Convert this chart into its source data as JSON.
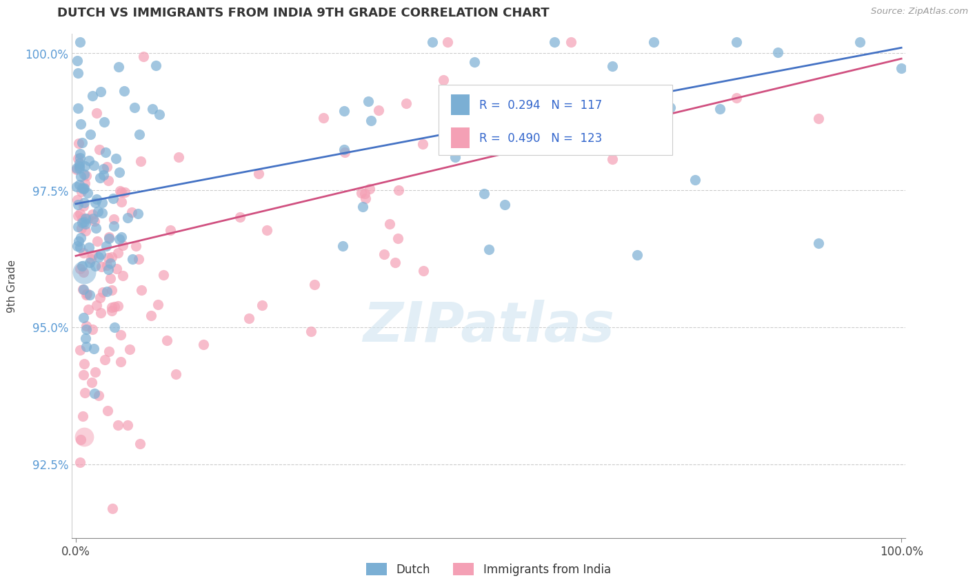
{
  "title": "DUTCH VS IMMIGRANTS FROM INDIA 9TH GRADE CORRELATION CHART",
  "source_text": "Source: ZipAtlas.com",
  "ylabel": "9th Grade",
  "ytick_labels": [
    "92.5%",
    "95.0%",
    "97.5%",
    "100.0%"
  ],
  "ytick_values": [
    0.925,
    0.95,
    0.975,
    1.0
  ],
  "xtick_labels": [
    "0.0%",
    "100.0%"
  ],
  "xtick_values": [
    0.0,
    1.0
  ],
  "legend_R_dutch": "0.294",
  "legend_N_dutch": "117",
  "legend_R_india": "0.490",
  "legend_N_india": "123",
  "dutch_color": "#7bafd4",
  "india_color": "#f4a0b5",
  "dutch_line_color": "#4472c4",
  "india_line_color": "#d05080",
  "background_color": "#ffffff",
  "watermark_text": "ZIPatlas",
  "dot_size": 120,
  "dutch_line_start_y": 0.9725,
  "dutch_line_end_y": 1.001,
  "india_line_start_y": 0.963,
  "india_line_end_y": 0.999
}
